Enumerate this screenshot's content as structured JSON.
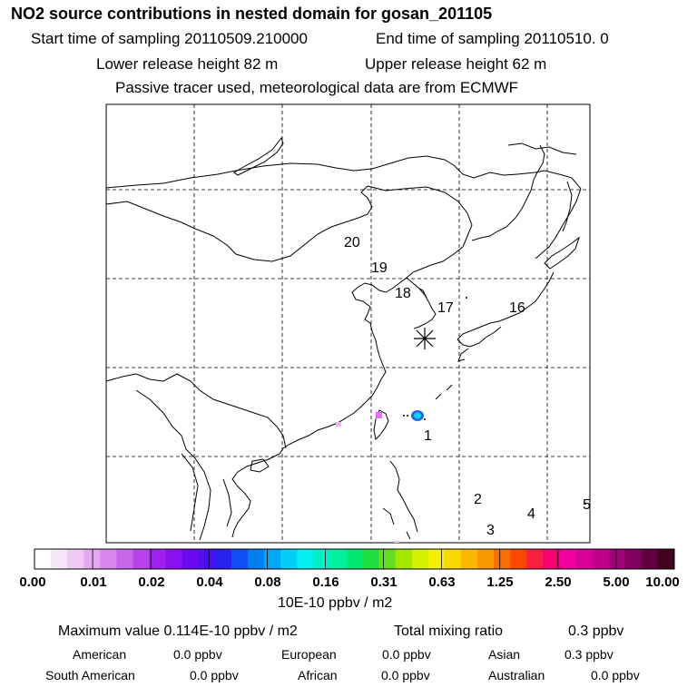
{
  "header": {
    "title": "NO2 source contributions in nested domain for gosan_201105",
    "start_time": "Start time of sampling 20110509.210000",
    "end_time": "End time of sampling 20110510.     0",
    "lower_release": "Lower release height   82 m",
    "upper_release": "Upper release height   62 m",
    "tracer_note": "Passive tracer used, meteorological data are from ECMWF"
  },
  "map": {
    "trajectory_labels": [
      "1",
      "2",
      "3",
      "4",
      "5",
      "16",
      "17",
      "18",
      "19",
      "20"
    ],
    "receptor_marker": "station-star"
  },
  "colorbar": {
    "tick_labels": [
      "0.00",
      "0.01",
      "0.02",
      "0.04",
      "0.08",
      "0.16",
      "0.31",
      "0.63",
      "1.25",
      "2.50",
      "5.00",
      "10.00"
    ],
    "unit_label": "10E-10 ppbv / m2",
    "colors": [
      "#ffffff",
      "#f8e6fb",
      "#f0c8f6",
      "#e4a8f0",
      "#d888ec",
      "#c866ea",
      "#b844e8",
      "#a020f0",
      "#8a10f0",
      "#6c08f0",
      "#4c10f0",
      "#2a20f0",
      "#1050f0",
      "#0080f0",
      "#00a8f8",
      "#00d0f8",
      "#00f0f0",
      "#00f0c8",
      "#00f0a0",
      "#00e870",
      "#20e040",
      "#60e020",
      "#a0e800",
      "#d0f000",
      "#f0f000",
      "#f8d800",
      "#f8b800",
      "#f89800",
      "#f87000",
      "#f84800",
      "#f82040",
      "#f80070",
      "#f000a0",
      "#d80098",
      "#c00088",
      "#a00078",
      "#800060",
      "#600040",
      "#400020"
    ]
  },
  "summary": {
    "maximum": "Maximum value  0.114E-10 ppbv / m2",
    "total_label": "Total mixing ratio",
    "total_value": "0.3 ppbv",
    "regions": {
      "american_label": "American",
      "american_value": "0.0 ppbv",
      "european_label": "European",
      "european_value": "0.0 ppbv",
      "asian_label": "Asian",
      "asian_value": "0.3 ppbv",
      "south_american_label": "South American",
      "south_american_value": "0.0 ppbv",
      "african_label": "African",
      "african_value": "0.0 ppbv",
      "australian_label": "Australian",
      "australian_value": "0.0 ppbv"
    }
  }
}
